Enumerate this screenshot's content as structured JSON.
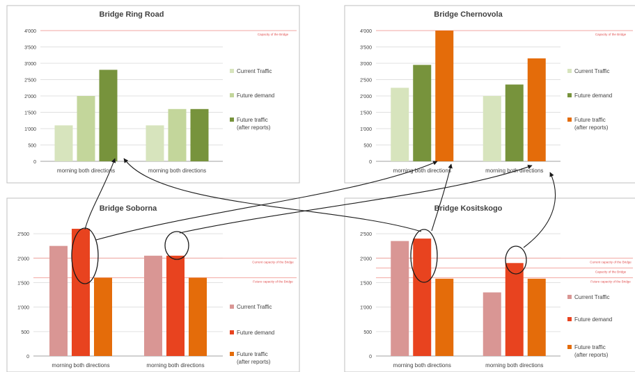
{
  "colors": {
    "current_green": "#d7e4bd",
    "future_demand_green": "#c3d69b",
    "future_traffic_green": "#77933c",
    "current_green_chernovola": "#d7e4bd",
    "future_demand_green_chernovola": "#77933c",
    "future_traffic_orange": "#e46c0a",
    "current_pink": "#d99694",
    "future_demand_red": "#e8431f",
    "future_traffic_orange2": "#e46c0a",
    "capacity_line": "#f2a5a0",
    "annotation_text": "#e05050"
  },
  "chart_data": [
    {
      "type": "bar",
      "title": "Bridge Ring Road",
      "categories": [
        "morning both directions",
        "morning both directions"
      ],
      "series": [
        {
          "name": "Current Traffic",
          "values": [
            1100,
            1100
          ]
        },
        {
          "name": "Future demand",
          "values": [
            2000,
            1600
          ]
        },
        {
          "name": "Future traffic (after reports)",
          "values": [
            2800,
            1600
          ]
        }
      ],
      "ylim": [
        0,
        4000
      ],
      "yticks": [
        "0",
        "500",
        "1'000",
        "1'500",
        "2'000",
        "2'500",
        "3'000",
        "3'500",
        "4'000"
      ],
      "reference_lines": [
        {
          "label": "Capacity of the Bridge",
          "value": 4000
        }
      ],
      "legend": "right"
    },
    {
      "type": "bar",
      "title": "Bridge Chernovola",
      "categories": [
        "morning both directions",
        "morning both directions"
      ],
      "series": [
        {
          "name": "Current Traffic",
          "values": [
            2250,
            2000
          ]
        },
        {
          "name": "Future demand",
          "values": [
            2950,
            2350
          ]
        },
        {
          "name": "Future traffic (after reports)",
          "values": [
            4000,
            3150
          ]
        }
      ],
      "ylim": [
        0,
        4000
      ],
      "yticks": [
        "0",
        "500",
        "1'000",
        "1'500",
        "2'000",
        "2'500",
        "3'000",
        "3'500",
        "4'000"
      ],
      "reference_lines": [
        {
          "label": "Capacity of the Bridge",
          "value": 4000
        }
      ],
      "legend": "right"
    },
    {
      "type": "bar",
      "title": "Bridge Soborna",
      "categories": [
        "morning both directions",
        "morning both directions"
      ],
      "series": [
        {
          "name": "Current Traffic",
          "values": [
            2250,
            2050
          ]
        },
        {
          "name": "Future demand",
          "values": [
            2600,
            2050
          ]
        },
        {
          "name": "Future traffic (after reports)",
          "values": [
            1600,
            1600
          ]
        }
      ],
      "ylim": [
        0,
        2700
      ],
      "yticks": [
        "0",
        "500",
        "1'000",
        "1'500",
        "2'000",
        "2'500"
      ],
      "reference_lines": [
        {
          "label": "Current capacity of the Bridge",
          "value": 2000
        },
        {
          "label": "Future capacity of the Bridge",
          "value": 1600
        }
      ],
      "legend": "right"
    },
    {
      "type": "bar",
      "title": "Bridge Kositskogo",
      "categories": [
        "morning both directions",
        "morning both directions"
      ],
      "series": [
        {
          "name": "Current Traffic",
          "values": [
            2350,
            1300
          ]
        },
        {
          "name": "Future demand",
          "values": [
            2400,
            1900
          ]
        },
        {
          "name": "Future traffic (after reports)",
          "values": [
            1580,
            1580
          ]
        }
      ],
      "ylim": [
        0,
        2700
      ],
      "yticks": [
        "0",
        "500",
        "1'000",
        "1'500",
        "2'000",
        "2'500"
      ],
      "reference_lines": [
        {
          "label": "Current capacity of the Bridge",
          "value": 2000
        },
        {
          "label": "Capacity of the Bridge",
          "value": 1800
        },
        {
          "label": "Future capacity of the Bridge",
          "value": 1600
        }
      ],
      "legend": "right"
    }
  ]
}
